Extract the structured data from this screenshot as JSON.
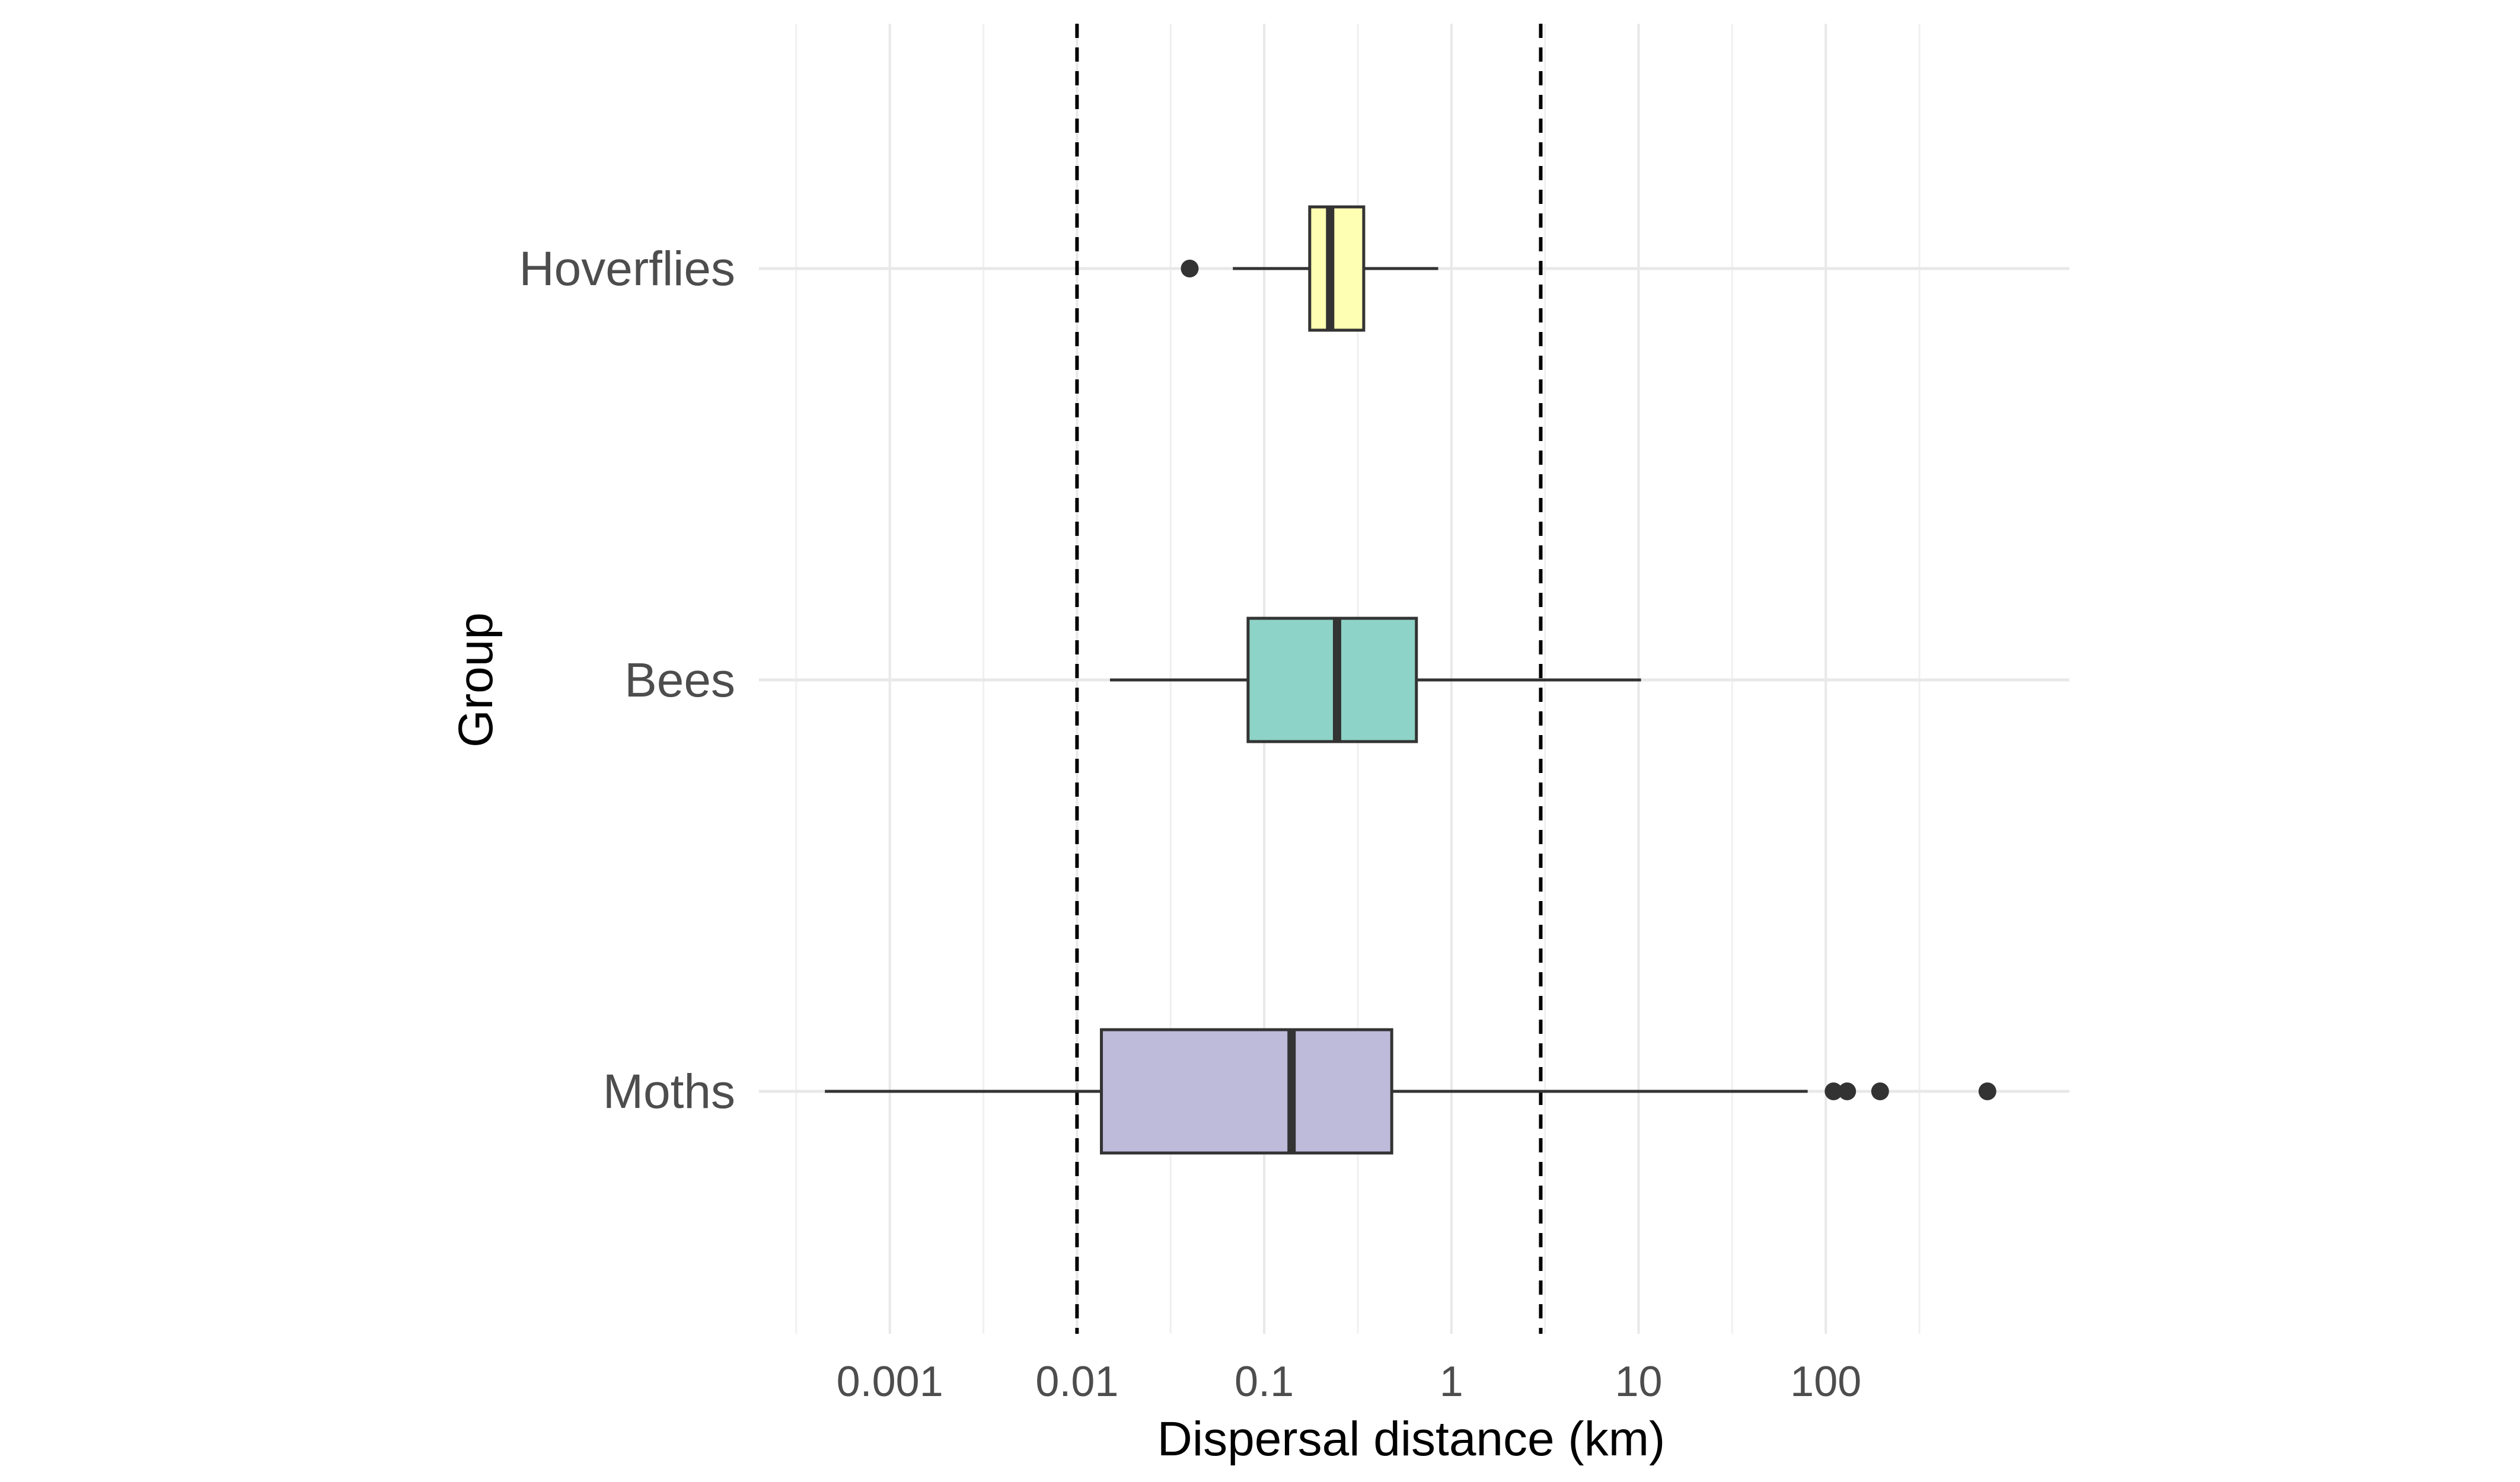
{
  "chart_data": {
    "type": "boxplot",
    "orientation": "horizontal",
    "xscale": "log10",
    "xlim": [
      0.0002,
      2000
    ],
    "xlabel": "Dispersal distance (km)",
    "ylabel": "Group",
    "xticks": [
      {
        "value": 0.001,
        "label": "0.001"
      },
      {
        "value": 0.01,
        "label": "0.01"
      },
      {
        "value": 0.1,
        "label": "0.1"
      },
      {
        "value": 1,
        "label": "1"
      },
      {
        "value": 10,
        "label": "10"
      },
      {
        "value": 100,
        "label": "100"
      }
    ],
    "reference_lines": [
      {
        "x": 0.01,
        "style": "dashed"
      },
      {
        "x": 3,
        "style": "dashed"
      }
    ],
    "grid": true,
    "groups": [
      {
        "label": "Hoverflies",
        "color": "#ffffb3",
        "whisker_low": 0.068,
        "q1": 0.175,
        "median": 0.225,
        "q3": 0.34,
        "whisker_high": 0.85,
        "outliers": [
          0.04
        ]
      },
      {
        "label": "Bees",
        "color": "#8dd3c7",
        "whisker_low": 0.015,
        "q1": 0.082,
        "median": 0.245,
        "q3": 0.65,
        "whisker_high": 10.3,
        "outliers": []
      },
      {
        "label": "Moths",
        "color": "#bebada",
        "whisker_low": 0.00045,
        "q1": 0.0135,
        "median": 0.14,
        "q3": 0.48,
        "whisker_high": 80,
        "outliers": [
          110,
          130,
          195,
          730
        ]
      }
    ]
  }
}
